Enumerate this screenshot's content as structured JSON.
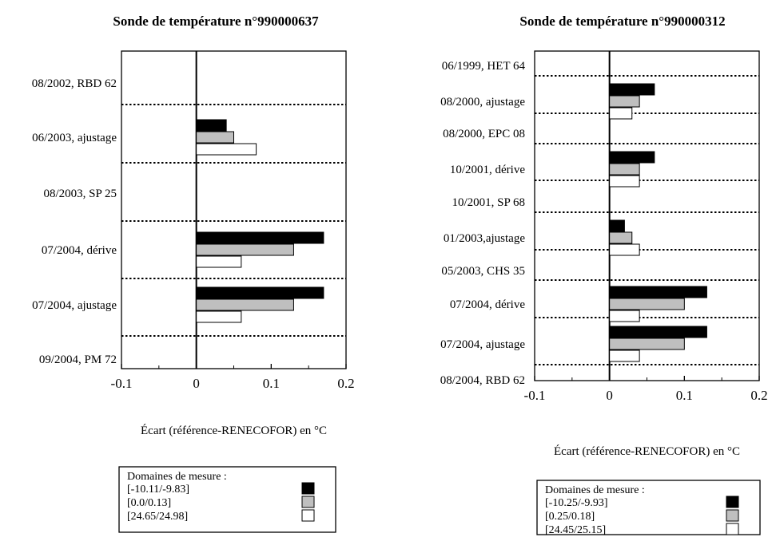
{
  "chart_data": [
    {
      "type": "bar",
      "orientation": "horizontal",
      "title": "Sonde de température n°990000637",
      "xlabel": "Écart (référence-RENECOFOR) en °C",
      "xlim": [
        -0.1,
        0.2
      ],
      "xticks": [
        "-0.1",
        "0",
        "0.1",
        "0.2"
      ],
      "legend_title": "Domaines de mesure :",
      "series": [
        {
          "name": "[-10.11/-9.83]",
          "color": "#000000"
        },
        {
          "name": "[0.0/0.13]",
          "color": "#bfbfbf"
        },
        {
          "name": "[24.65/24.98]",
          "color": "#ffffff"
        }
      ],
      "rows": [
        {
          "label": "08/2002, RBD 62"
        },
        {
          "label": "06/2003, ajustage",
          "values": [
            0.04,
            0.05,
            0.08
          ]
        },
        {
          "label": "08/2003, SP 25"
        },
        {
          "label": "07/2004, dérive",
          "values": [
            0.17,
            0.13,
            0.06
          ]
        },
        {
          "label": "07/2004, ajustage",
          "values": [
            0.17,
            0.13,
            0.06
          ]
        },
        {
          "label": "09/2004, PM 72"
        }
      ]
    },
    {
      "type": "bar",
      "orientation": "horizontal",
      "title": "Sonde de température n°990000312",
      "xlabel": "Écart (référence-RENECOFOR) en °C",
      "xlim": [
        -0.1,
        0.2
      ],
      "xticks": [
        "-0.1",
        "0",
        "0.1",
        "0.2"
      ],
      "legend_title": "Domaines de mesure :",
      "series": [
        {
          "name": "[-10.25/-9.93]",
          "color": "#000000"
        },
        {
          "name": "[0.25/0.18]",
          "color": "#bfbfbf"
        },
        {
          "name": "[24.45/25.15]",
          "color": "#ffffff"
        }
      ],
      "rows": [
        {
          "label": "06/1999, HET 64"
        },
        {
          "label": "08/2000, ajustage",
          "values": [
            0.06,
            0.04,
            0.03
          ]
        },
        {
          "label": "08/2000, EPC 08"
        },
        {
          "label": "10/2001, dérive",
          "values": [
            0.06,
            0.04,
            0.04
          ]
        },
        {
          "label": "10/2001, SP 68"
        },
        {
          "label": "01/2003,ajustage",
          "values": [
            0.02,
            0.03,
            0.04
          ]
        },
        {
          "label": "05/2003, CHS 35"
        },
        {
          "label": "07/2004, dérive",
          "values": [
            0.13,
            0.1,
            0.04
          ]
        },
        {
          "label": "07/2004, ajustage",
          "values": [
            0.13,
            0.1,
            0.04
          ]
        },
        {
          "label": "08/2004, RBD 62"
        }
      ]
    }
  ]
}
